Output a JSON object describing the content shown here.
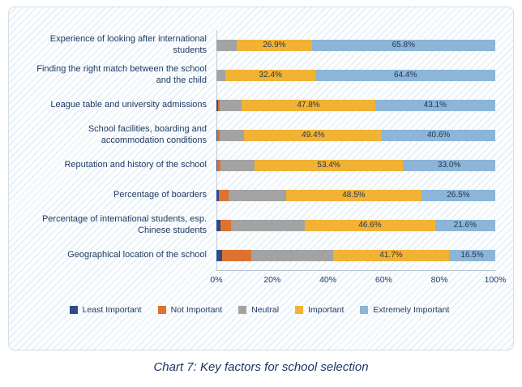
{
  "caption": "Chart 7: Key factors for school selection",
  "chart_data": {
    "type": "bar",
    "orientation": "horizontal",
    "stacked": true,
    "title": "",
    "xlabel": "",
    "ylabel": "",
    "xlim": [
      0,
      100
    ],
    "x_ticks": [
      "0%",
      "20%",
      "40%",
      "60%",
      "80%",
      "100%"
    ],
    "grid": false,
    "legend_position": "bottom",
    "categories": [
      "Experience of looking after international students",
      "Finding the right match between the school and the child",
      "League table and university admissions",
      "School facilities, boarding and accommodation conditions",
      "Reputation and history of the school",
      "Percentage of boarders",
      "Percentage of international students, esp. Chinese students",
      "Geographical location of the school"
    ],
    "series": [
      {
        "name": "Least Important",
        "color": "#2a4d87",
        "show_labels": false,
        "values": [
          0,
          0,
          0.7,
          0.3,
          0.4,
          0.9,
          1.5,
          2.0
        ]
      },
      {
        "name": "Not Important",
        "color": "#de7230",
        "show_labels": false,
        "values": [
          0,
          0,
          0.4,
          0.9,
          1.0,
          3.6,
          3.8,
          10.5
        ]
      },
      {
        "name": "Neutral",
        "color": "#a3a3a3",
        "show_labels": false,
        "values": [
          7.3,
          3.2,
          8.0,
          8.8,
          12.2,
          20.5,
          26.5,
          29.3
        ]
      },
      {
        "name": "Important",
        "color": "#f2b234",
        "show_labels": true,
        "values": [
          26.9,
          32.4,
          47.8,
          49.4,
          53.4,
          48.5,
          46.6,
          41.7
        ]
      },
      {
        "name": "Extremely Important",
        "color": "#8cb5d8",
        "show_labels": true,
        "values": [
          65.8,
          64.4,
          43.1,
          40.6,
          33.0,
          26.5,
          21.6,
          16.5
        ]
      }
    ]
  }
}
